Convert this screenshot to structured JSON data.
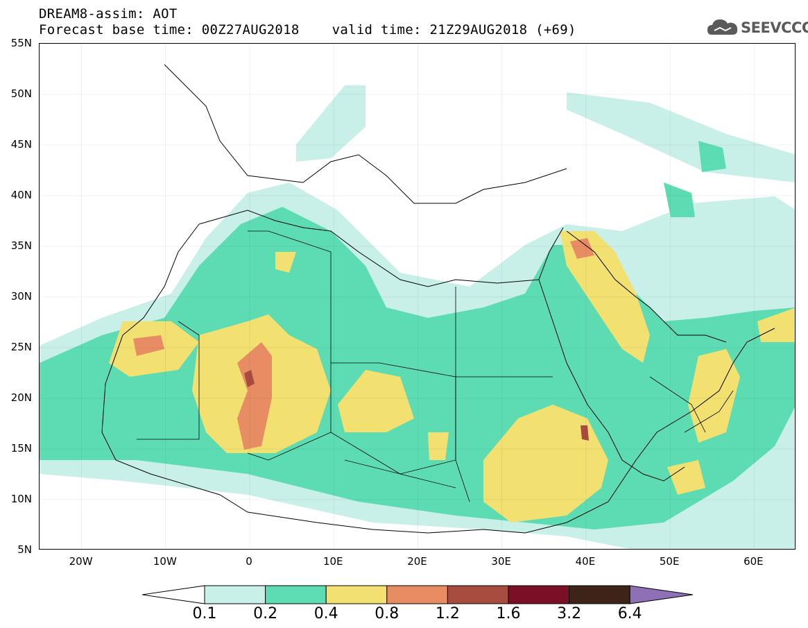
{
  "title": {
    "line1": "DREAM8-assim: AOT",
    "line2": "Forecast base time: 00Z27AUG2018    valid time: 21Z29AUG2018 (+69)"
  },
  "logo": {
    "text": "SEEVCCC",
    "icon": "cloud-icon"
  },
  "map": {
    "lon_range": [
      -25,
      65
    ],
    "lat_range": [
      5,
      55
    ],
    "lat_ticks": [
      {
        "value": 55,
        "label": "55N"
      },
      {
        "value": 50,
        "label": "50N"
      },
      {
        "value": 45,
        "label": "45N"
      },
      {
        "value": 40,
        "label": "40N"
      },
      {
        "value": 35,
        "label": "35N"
      },
      {
        "value": 30,
        "label": "30N"
      },
      {
        "value": 25,
        "label": "25N"
      },
      {
        "value": 20,
        "label": "20N"
      },
      {
        "value": 15,
        "label": "15N"
      },
      {
        "value": 10,
        "label": "10N"
      },
      {
        "value": 5,
        "label": "5N"
      }
    ],
    "lon_ticks": [
      {
        "value": -20,
        "label": "20W"
      },
      {
        "value": -10,
        "label": "10W"
      },
      {
        "value": 0,
        "label": "0"
      },
      {
        "value": 10,
        "label": "10E"
      },
      {
        "value": 20,
        "label": "20E"
      },
      {
        "value": 30,
        "label": "30E"
      },
      {
        "value": 40,
        "label": "40E"
      },
      {
        "value": 50,
        "label": "50E"
      },
      {
        "value": 60,
        "label": "60E"
      }
    ]
  },
  "colorbar": {
    "levels": [
      "0.1",
      "0.2",
      "0.4",
      "0.8",
      "1.2",
      "1.6",
      "3.2",
      "6.4"
    ],
    "colors": [
      "#c8f0e8",
      "#5ddcb4",
      "#f2e070",
      "#e88c64",
      "#a84c40",
      "#7a0f26",
      "#3c2418",
      "#8f6fb5"
    ],
    "low_end_color": "#ffffff"
  }
}
